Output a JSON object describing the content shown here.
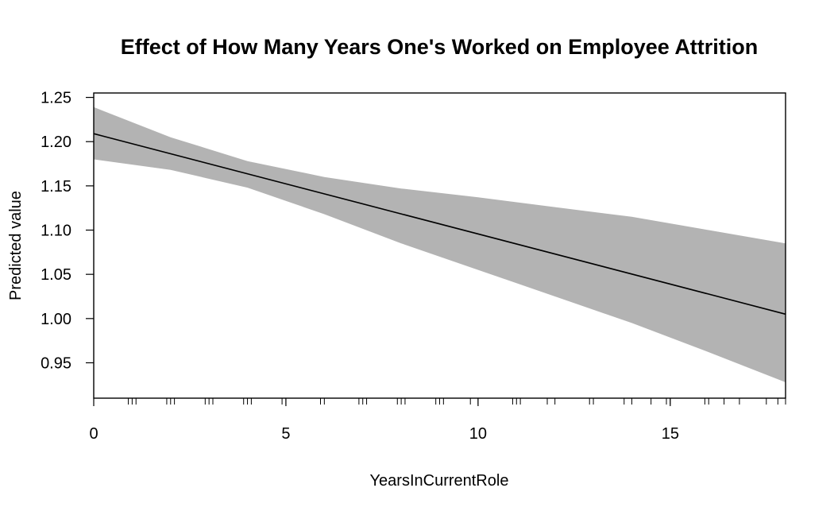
{
  "chart_data": {
    "type": "line",
    "title": "Effect of How Many Years One's Worked on Employee Attrition",
    "xlabel": "YearsInCurrentRole",
    "ylabel": "Predicted value",
    "xlim": [
      0,
      18
    ],
    "ylim": [
      0.91,
      1.255
    ],
    "x_ticks": [
      0,
      5,
      10,
      15
    ],
    "y_ticks": [
      0.95,
      1.0,
      1.05,
      1.1,
      1.15,
      1.2,
      1.25
    ],
    "x_tick_labels": [
      "0",
      "5",
      "10",
      "15"
    ],
    "y_tick_labels": [
      "0.95",
      "1.00",
      "1.05",
      "1.10",
      "1.15",
      "1.20",
      "1.25"
    ],
    "grid": false,
    "legend": "none",
    "colors": {
      "line": "#000000",
      "band": "#b3b3b3",
      "rug": "#000000"
    },
    "series": [
      {
        "kind": "line",
        "x": [
          0,
          18
        ],
        "y": [
          1.209,
          1.005
        ]
      },
      {
        "kind": "confidence_band",
        "x": [
          0,
          2,
          4,
          6,
          8,
          10,
          12,
          14,
          16,
          18
        ],
        "lower": [
          1.18,
          1.168,
          1.148,
          1.118,
          1.085,
          1.055,
          1.025,
          0.995,
          0.962,
          0.928
        ],
        "upper": [
          1.239,
          1.205,
          1.178,
          1.16,
          1.147,
          1.137,
          1.126,
          1.115,
          1.1,
          1.085
        ]
      }
    ],
    "rug": [
      0,
      0.9,
      1,
      1.1,
      1.9,
      2,
      2.1,
      2.9,
      3,
      3.1,
      3.9,
      4,
      4.1,
      4.9,
      5,
      5.9,
      6,
      6.9,
      7,
      7.1,
      7.9,
      8,
      8.1,
      8.9,
      9,
      9.1,
      9.8,
      10,
      10.9,
      11,
      11.1,
      11.8,
      12,
      12.9,
      13,
      13.8,
      14,
      14.5,
      14.9,
      15,
      15.9,
      16,
      16.4,
      16.8,
      17.5,
      17.8,
      18
    ]
  }
}
